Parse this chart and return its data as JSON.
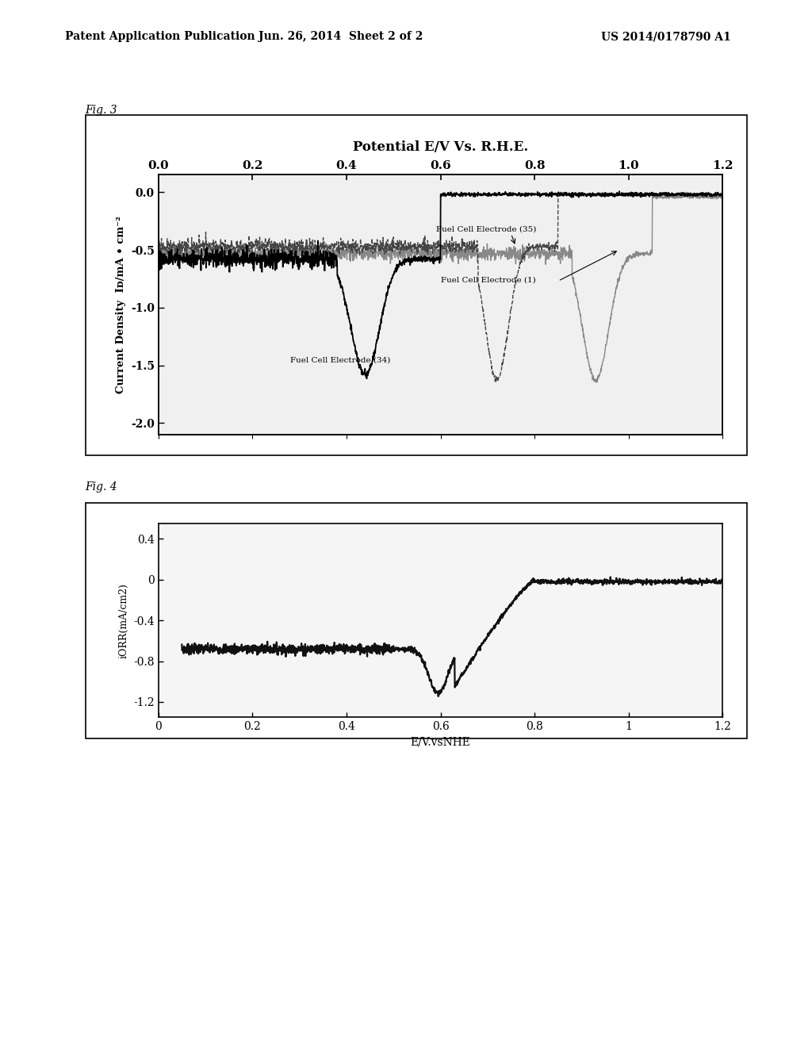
{
  "header_left": "Patent Application Publication",
  "header_mid": "Jun. 26, 2014  Sheet 2 of 2",
  "header_right": "US 2014/0178790 A1",
  "fig3_label": "Fig. 3",
  "fig4_label": "Fig. 4",
  "fig3_title": "Potential E/V Vs. R.H.E.",
  "fig3_xlabel_ticks": [
    0.0,
    0.2,
    0.4,
    0.6,
    0.8,
    1.0,
    1.2
  ],
  "fig3_ylabel": "Current Density  Iᴅ/mA • cm⁻²",
  "fig3_yticks": [
    0.0,
    -0.5,
    -1.0,
    -1.5,
    -2.0
  ],
  "fig3_xlim": [
    0.0,
    1.2
  ],
  "fig3_ylim": [
    -2.1,
    0.15
  ],
  "fig4_xlabel": "E/V.vsNHE",
  "fig4_ylabel": "iORR(mA/cm2)",
  "fig4_xlabel_ticks": [
    0,
    0.2,
    0.4,
    0.6,
    0.8,
    1.0,
    1.2
  ],
  "fig4_yticks": [
    0.4,
    0,
    -0.4,
    -0.8,
    -1.2
  ],
  "fig4_xlim": [
    0.0,
    1.2
  ],
  "fig4_ylim": [
    -1.35,
    0.55
  ],
  "bg_color": "#ffffff",
  "plot_bg_fig3": "#f0f0f0",
  "plot_bg_fig4": "#f5f5f5",
  "line_color_34": "#000000",
  "line_color_35": "#444444",
  "line_color_1": "#888888",
  "annotation_34": "Fuel Cell Electrode (34)",
  "annotation_35": "Fuel Cell Electrode (35)",
  "annotation_1": "Fuel Cell Electrode (1)"
}
